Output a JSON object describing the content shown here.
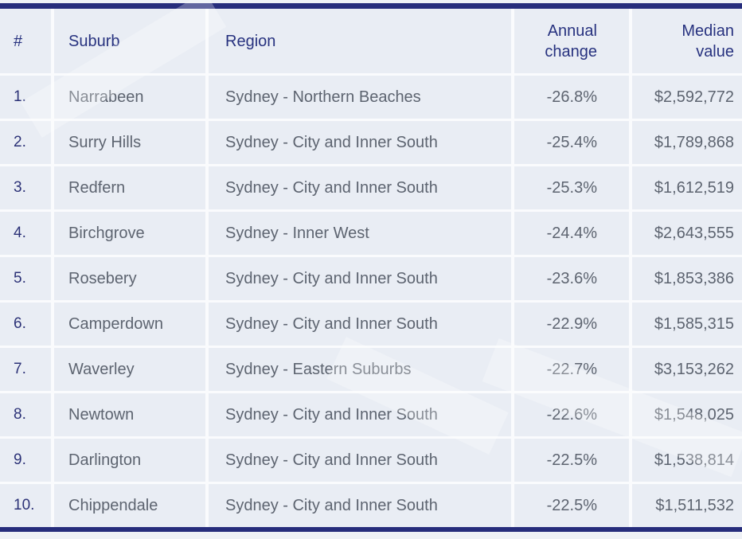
{
  "table": {
    "columns": {
      "rank": "#",
      "suburb": "Suburb",
      "region": "Region",
      "annual_change": "Annual change",
      "median_value": "Median value"
    },
    "rows": [
      {
        "rank": "1.",
        "suburb": "Narrabeen",
        "region": "Sydney - Northern Beaches",
        "annual_change": "-26.8%",
        "median_value": "$2,592,772"
      },
      {
        "rank": "2.",
        "suburb": "Surry Hills",
        "region": "Sydney - City and Inner South",
        "annual_change": "-25.4%",
        "median_value": "$1,789,868"
      },
      {
        "rank": "3.",
        "suburb": "Redfern",
        "region": "Sydney - City and Inner South",
        "annual_change": "-25.3%",
        "median_value": "$1,612,519"
      },
      {
        "rank": "4.",
        "suburb": "Birchgrove",
        "region": "Sydney - Inner West",
        "annual_change": "-24.4%",
        "median_value": "$2,643,555"
      },
      {
        "rank": "5.",
        "suburb": "Rosebery",
        "region": "Sydney - City and Inner South",
        "annual_change": "-23.6%",
        "median_value": "$1,853,386"
      },
      {
        "rank": "6.",
        "suburb": "Camperdown",
        "region": "Sydney - City and Inner South",
        "annual_change": "-22.9%",
        "median_value": "$1,585,315"
      },
      {
        "rank": "7.",
        "suburb": "Waverley",
        "region": "Sydney - Eastern Suburbs",
        "annual_change": "-22.7%",
        "median_value": "$3,153,262"
      },
      {
        "rank": "8.",
        "suburb": "Newtown",
        "region": "Sydney - City and Inner South",
        "annual_change": "-22.6%",
        "median_value": "$1,548,025"
      },
      {
        "rank": "9.",
        "suburb": "Darlington",
        "region": "Sydney - City and Inner South",
        "annual_change": "-22.5%",
        "median_value": "$1,538,814"
      },
      {
        "rank": "10.",
        "suburb": "Chippendale",
        "region": "Sydney - City and Inner South",
        "annual_change": "-22.5%",
        "median_value": "$1,511,532"
      }
    ]
  },
  "chart_data": {
    "type": "table",
    "title": "",
    "columns": [
      "#",
      "Suburb",
      "Region",
      "Annual change",
      "Median value"
    ],
    "rows": [
      [
        "1.",
        "Narrabeen",
        "Sydney - Northern Beaches",
        "-26.8%",
        "$2,592,772"
      ],
      [
        "2.",
        "Surry Hills",
        "Sydney - City and Inner South",
        "-25.4%",
        "$1,789,868"
      ],
      [
        "3.",
        "Redfern",
        "Sydney - City and Inner South",
        "-25.3%",
        "$1,612,519"
      ],
      [
        "4.",
        "Birchgrove",
        "Sydney - Inner West",
        "-24.4%",
        "$2,643,555"
      ],
      [
        "5.",
        "Rosebery",
        "Sydney - City and Inner South",
        "-23.6%",
        "$1,853,386"
      ],
      [
        "6.",
        "Camperdown",
        "Sydney - City and Inner South",
        "-22.9%",
        "$1,585,315"
      ],
      [
        "7.",
        "Waverley",
        "Sydney - Eastern Suburbs",
        "-22.7%",
        "$3,153,262"
      ],
      [
        "8.",
        "Newtown",
        "Sydney - City and Inner South",
        "-22.6%",
        "$1,548,025"
      ],
      [
        "9.",
        "Darlington",
        "Sydney - City and Inner South",
        "-22.5%",
        "$1,538,814"
      ],
      [
        "10.",
        "Chippendale",
        "Sydney - City and Inner South",
        "-22.5%",
        "$1,511,532"
      ]
    ],
    "annual_change_values_pct": [
      -26.8,
      -25.4,
      -25.3,
      -24.4,
      -23.6,
      -22.9,
      -22.7,
      -22.6,
      -22.5,
      -22.5
    ],
    "median_values_aud": [
      2592772,
      1789868,
      1612519,
      2643555,
      1853386,
      1585315,
      3153262,
      1548025,
      1538814,
      1511532
    ]
  },
  "colors": {
    "accent_navy": "#262d7c",
    "header_text": "#27327f",
    "rank_text": "#2c3277",
    "body_text": "#5d6470",
    "cell_bg": "#e9edf4",
    "gridline_bg": "#fafbfd",
    "page_bg": "#eef1f6"
  }
}
